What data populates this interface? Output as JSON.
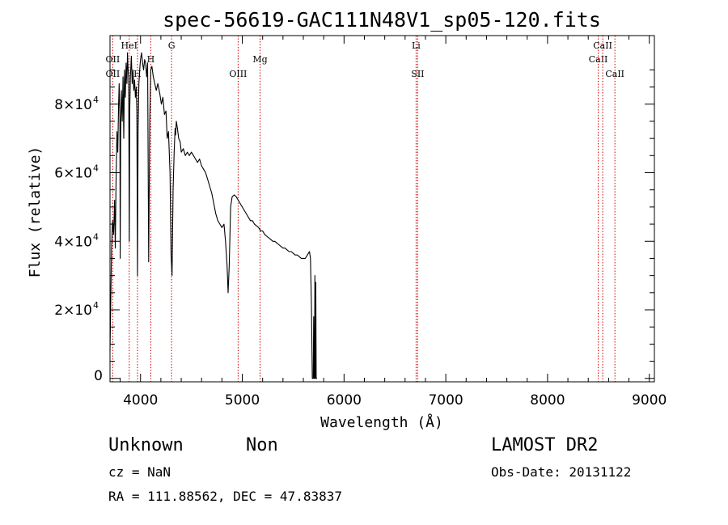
{
  "chart_data": {
    "type": "line",
    "title": "spec-56619-GAC111N48V1_sp05-120.fits",
    "xlabel": "Wavelength (Å)",
    "ylabel": "Flux (relative)",
    "xlim": [
      3700,
      9050
    ],
    "ylim": [
      -1000,
      100000
    ],
    "x_ticks": [
      4000,
      5000,
      6000,
      7000,
      8000,
      9000
    ],
    "x_tick_labels": [
      "4000",
      "5000",
      "6000",
      "7000",
      "8000",
      "9000"
    ],
    "y_ticks": [
      0,
      20000,
      40000,
      60000,
      80000
    ],
    "y_tick_labels": [
      {
        "mantissa": "0",
        "exp": ""
      },
      {
        "mantissa": "2×10",
        "exp": "4"
      },
      {
        "mantissa": "4×10",
        "exp": "4"
      },
      {
        "mantissa": "6×10",
        "exp": "4"
      },
      {
        "mantissa": "8×10",
        "exp": "4"
      }
    ],
    "grid": false,
    "series": [
      {
        "color": "#000000",
        "x": [
          3700,
          3715,
          3725,
          3735,
          3745,
          3752,
          3760,
          3768,
          3776,
          3784,
          3790,
          3797,
          3800,
          3805,
          3812,
          3820,
          3828,
          3835,
          3842,
          3850,
          3858,
          3866,
          3872,
          3878,
          3884,
          3889,
          3894,
          3900,
          3910,
          3918,
          3926,
          3934,
          3942,
          3950,
          3958,
          3964,
          3970,
          3976,
          3984,
          3992,
          4000,
          4010,
          4020,
          4030,
          4040,
          4050,
          4060,
          4070,
          4080,
          4090,
          4101,
          4112,
          4125,
          4140,
          4155,
          4170,
          4190,
          4205,
          4220,
          4235,
          4250,
          4262,
          4275,
          4290,
          4300,
          4310,
          4320,
          4330,
          4340,
          4345,
          4352,
          4362,
          4375,
          4390,
          4400,
          4420,
          4440,
          4460,
          4480,
          4500,
          4520,
          4540,
          4560,
          4580,
          4600,
          4620,
          4640,
          4660,
          4680,
          4700,
          4720,
          4740,
          4760,
          4780,
          4800,
          4820,
          4835,
          4850,
          4861,
          4872,
          4885,
          4900,
          4920,
          4940,
          4960,
          4980,
          5000,
          5020,
          5040,
          5060,
          5080,
          5100,
          5120,
          5140,
          5160,
          5180,
          5200,
          5220,
          5240,
          5260,
          5280,
          5300,
          5320,
          5340,
          5360,
          5380,
          5400,
          5420,
          5440,
          5460,
          5480,
          5500,
          5520,
          5540,
          5560,
          5580,
          5600,
          5620,
          5640,
          5660,
          5670,
          5680,
          5688,
          5692,
          5698,
          5702,
          5706,
          5710,
          5714,
          5718,
          5722,
          5726,
          5730,
          5735
        ],
        "y": [
          8000,
          38000,
          46000,
          42000,
          52000,
          38000,
          58000,
          72000,
          66000,
          80000,
          86000,
          76000,
          35000,
          72000,
          84000,
          75000,
          88000,
          70000,
          90000,
          82000,
          92000,
          86000,
          95000,
          90000,
          88000,
          40000,
          78000,
          88000,
          94000,
          86000,
          90000,
          84000,
          87000,
          82000,
          85000,
          78000,
          30000,
          72000,
          86000,
          90000,
          93000,
          95000,
          92000,
          90000,
          93000,
          92000,
          88000,
          92000,
          34000,
          75000,
          90000,
          91000,
          88000,
          86000,
          84000,
          86000,
          83000,
          80000,
          82000,
          77000,
          78000,
          70000,
          72000,
          60000,
          36000,
          30000,
          55000,
          66000,
          73000,
          71000,
          75000,
          73000,
          70000,
          69000,
          66000,
          67000,
          65000,
          66000,
          65000,
          66000,
          65000,
          64000,
          63000,
          64000,
          62000,
          61000,
          60000,
          58000,
          56000,
          54000,
          51000,
          48000,
          46000,
          45000,
          44000,
          45000,
          40000,
          33000,
          25000,
          33000,
          50000,
          53000,
          53500,
          53000,
          52000,
          51000,
          50000,
          49000,
          48000,
          47000,
          46000,
          46000,
          45000,
          44500,
          44000,
          43000,
          43000,
          42000,
          41500,
          41000,
          40500,
          40000,
          40000,
          39500,
          39000,
          38500,
          38000,
          38000,
          37500,
          37000,
          37000,
          36500,
          36000,
          36000,
          35500,
          35000,
          35000,
          35000,
          36000,
          37000,
          35000,
          20000,
          0,
          0,
          0,
          18000,
          0,
          0,
          30000,
          0,
          28000,
          0,
          0,
          0
        ]
      }
    ],
    "line_markers": [
      {
        "x": 3727,
        "color": "#cc0000",
        "labels": [
          {
            "text": "OII",
            "row": 1
          },
          {
            "text": "OII",
            "row": 2
          }
        ]
      },
      {
        "x": 3889,
        "color": "#cc0000",
        "labels": [
          {
            "text": "HeI",
            "row": 0
          }
        ]
      },
      {
        "x": 3970,
        "color": "#cc0000",
        "labels": [
          {
            "text": "H",
            "row": 2
          }
        ]
      },
      {
        "x": 4101,
        "color": "#cc0000",
        "labels": [
          {
            "text": "H",
            "row": 1
          }
        ]
      },
      {
        "x": 4305,
        "color": "#cc0000",
        "labels": [
          {
            "text": "G",
            "row": 0
          }
        ]
      },
      {
        "x": 4959,
        "color": "#cc0000",
        "labels": [
          {
            "text": "OIII",
            "row": 2
          }
        ]
      },
      {
        "x": 5175,
        "color": "#cc0000",
        "labels": [
          {
            "text": "Mg",
            "row": 1
          }
        ]
      },
      {
        "x": 6708,
        "color": "#cc0000",
        "labels": [
          {
            "text": "Li",
            "row": 0
          }
        ]
      },
      {
        "x": 6724,
        "color": "#cc0000",
        "labels": [
          {
            "text": "SII",
            "row": 2
          }
        ]
      },
      {
        "x": 8498,
        "color": "#cc0000",
        "labels": [
          {
            "text": "CaII",
            "row": 1
          }
        ]
      },
      {
        "x": 8542,
        "color": "#cc0000",
        "labels": [
          {
            "text": "CaII",
            "row": 0
          }
        ]
      },
      {
        "x": 8662,
        "color": "#cc0000",
        "labels": [
          {
            "text": "CaII",
            "row": 2
          }
        ]
      }
    ]
  },
  "info": {
    "object_class": "Unknown",
    "object_subclass": "Non",
    "survey": "LAMOST DR2",
    "redshift": "cz = NaN",
    "obs_date": "Obs-Date: 20131122",
    "coords": "RA = 111.88562, DEC =  47.83837"
  }
}
